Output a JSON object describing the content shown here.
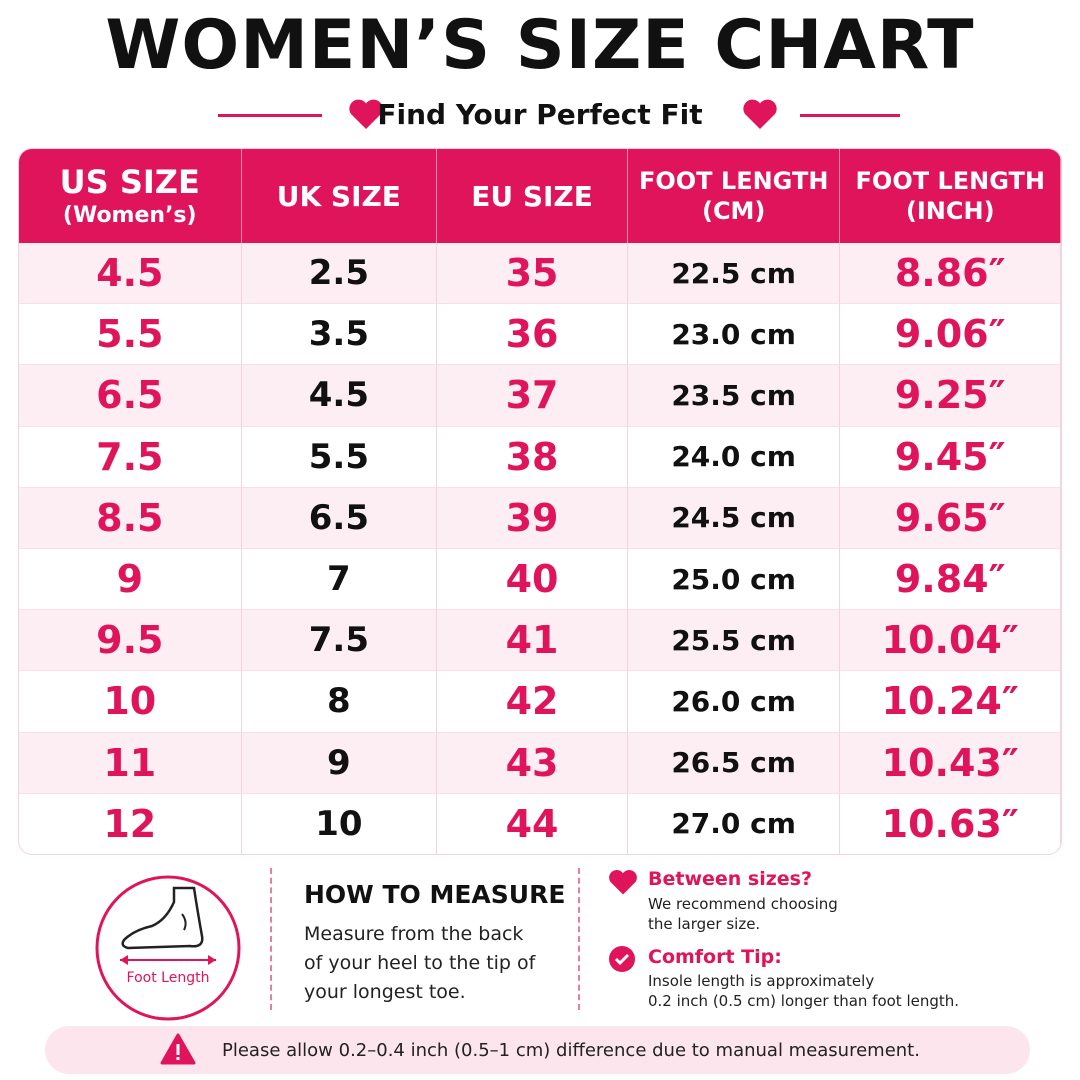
{
  "header": {
    "title": "WOMEN’S SIZE CHART",
    "subtitle": "Find Your Perfect Fit"
  },
  "table": {
    "columns": [
      [
        "US SIZE",
        "(Women’s)"
      ],
      [
        "UK SIZE"
      ],
      [
        "EU SIZE"
      ],
      [
        "FOOT LENGTH",
        "(CM)"
      ],
      [
        "FOOT LENGTH",
        "(INCH)"
      ]
    ],
    "rows": [
      [
        "4.5",
        "2.5",
        "35",
        "22.5 cm",
        "8.86″"
      ],
      [
        "5.5",
        "3.5",
        "36",
        "23.0 cm",
        "9.06″"
      ],
      [
        "6.5",
        "4.5",
        "37",
        "23.5 cm",
        "9.25″"
      ],
      [
        "7.5",
        "5.5",
        "38",
        "24.0 cm",
        "9.45″"
      ],
      [
        "8.5",
        "6.5",
        "39",
        "24.5 cm",
        "9.65″"
      ],
      [
        "9",
        "7",
        "40",
        "25.0 cm",
        "9.84″"
      ],
      [
        "9.5",
        "7.5",
        "41",
        "25.5 cm",
        "10.04″"
      ],
      [
        "10",
        "8",
        "42",
        "26.0 cm",
        "10.24″"
      ],
      [
        "11",
        "9",
        "43",
        "26.5 cm",
        "10.43″"
      ],
      [
        "12",
        "10",
        "44",
        "27.0 cm",
        "10.63″"
      ]
    ]
  },
  "measure": {
    "icon_label": "Foot Length",
    "title": "HOW TO MEASURE",
    "lines": [
      "Measure from the back",
      "of your heel to the tip of",
      "your longest toe."
    ]
  },
  "tips": [
    {
      "title": "Between sizes?",
      "lines": [
        "We recommend choosing",
        "the larger size."
      ]
    },
    {
      "title": "Comfort Tip:",
      "lines": [
        "Insole length is approximately",
        "0.2 inch (0.5 cm) longer than foot length."
      ]
    }
  ],
  "note": "Please allow 0.2–0.4 inch (0.5–1 cm) difference due to manual measurement."
}
